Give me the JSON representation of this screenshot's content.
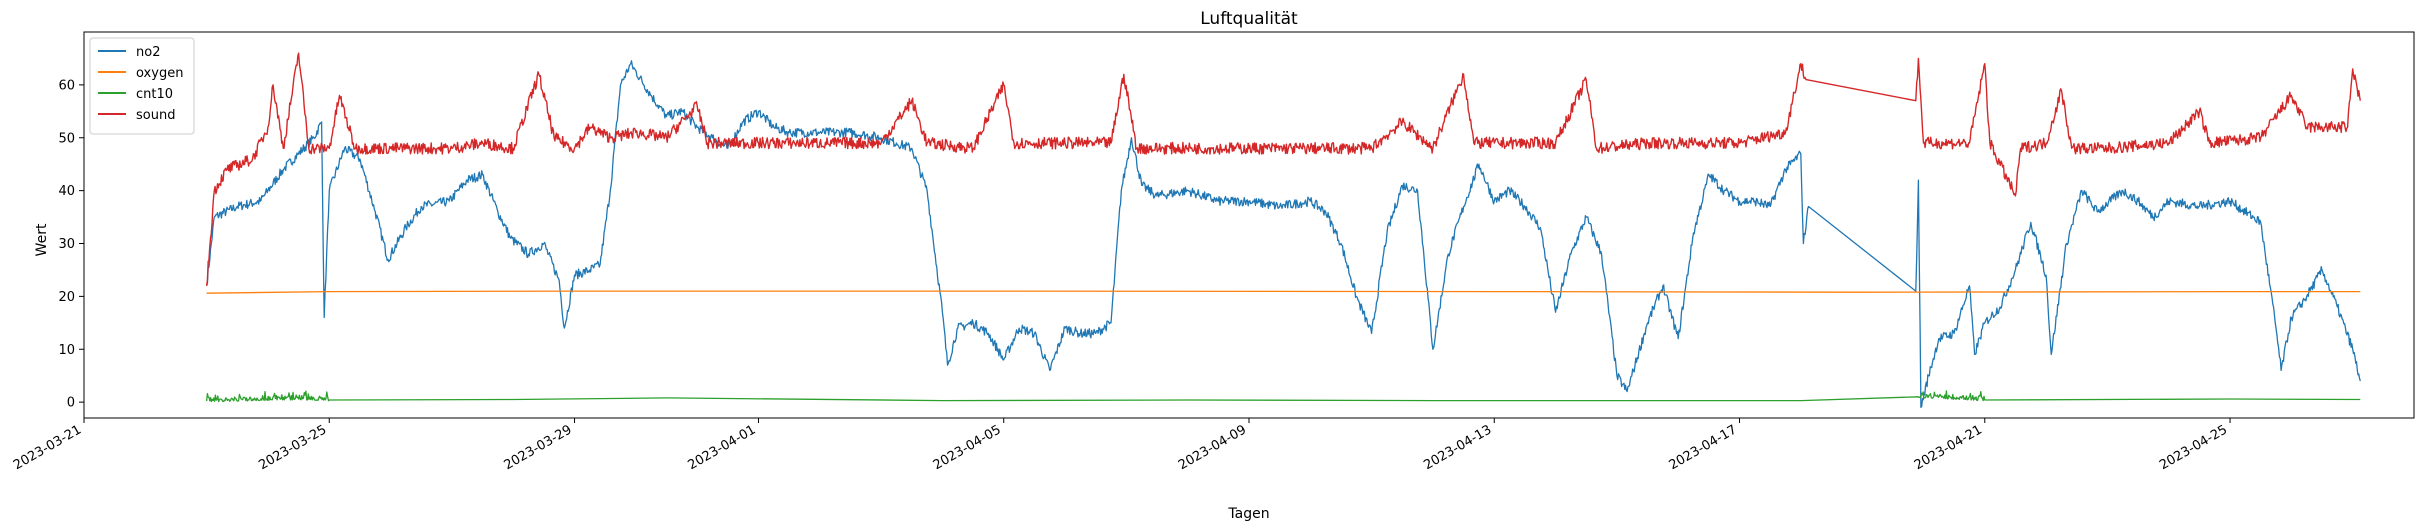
{
  "chart_data": {
    "type": "line",
    "title": "Luftqualität",
    "xlabel": "Tagen",
    "ylabel": "Wert",
    "xlim": [
      "2023-03-21T00:00",
      "2023-04-28T00:00"
    ],
    "ylim": [
      -3,
      70
    ],
    "x_ticks": [
      "2023-03-21",
      "2023-03-25",
      "2023-03-29",
      "2023-04-01",
      "2023-04-05",
      "2023-04-09",
      "2023-04-13",
      "2023-04-17",
      "2023-04-21",
      "2023-04-25"
    ],
    "y_ticks": [
      0,
      10,
      20,
      30,
      40,
      50,
      60
    ],
    "legend_position": "top-left",
    "grid": false,
    "series": [
      {
        "name": "no2",
        "color": "#1f77b4",
        "points": [
          [
            "2023-03-23T00:00",
            22
          ],
          [
            "2023-03-23T03:00",
            35
          ],
          [
            "2023-03-23T12:00",
            37
          ],
          [
            "2023-03-23T21:00",
            38
          ],
          [
            "2023-03-24T00:00",
            40
          ],
          [
            "2023-03-24T06:00",
            44
          ],
          [
            "2023-03-24T12:00",
            47
          ],
          [
            "2023-03-24T18:00",
            50
          ],
          [
            "2023-03-24T21:00",
            53
          ],
          [
            "2023-03-24T22:00",
            16
          ],
          [
            "2023-03-25T00:00",
            40
          ],
          [
            "2023-03-25T06:00",
            48
          ],
          [
            "2023-03-25T12:00",
            46
          ],
          [
            "2023-03-25T18:00",
            36
          ],
          [
            "2023-03-25T23:00",
            27
          ],
          [
            "2023-03-26T06:00",
            33
          ],
          [
            "2023-03-26T12:00",
            37
          ],
          [
            "2023-03-26T23:00",
            38
          ],
          [
            "2023-03-27T06:00",
            42
          ],
          [
            "2023-03-27T12:00",
            43
          ],
          [
            "2023-03-27T18:00",
            36
          ],
          [
            "2023-03-27T23:00",
            31
          ],
          [
            "2023-03-28T06:00",
            28
          ],
          [
            "2023-03-28T12:00",
            30
          ],
          [
            "2023-03-28T18:00",
            23
          ],
          [
            "2023-03-28T20:00",
            14
          ],
          [
            "2023-03-29T00:00",
            24
          ],
          [
            "2023-03-29T06:00",
            25
          ],
          [
            "2023-03-29T10:00",
            26
          ],
          [
            "2023-03-29T14:00",
            40
          ],
          [
            "2023-03-29T18:00",
            60
          ],
          [
            "2023-03-29T22:00",
            64
          ],
          [
            "2023-03-30T06:00",
            58
          ],
          [
            "2023-03-30T12:00",
            54
          ],
          [
            "2023-03-30T18:00",
            55
          ],
          [
            "2023-03-31T00:00",
            52
          ],
          [
            "2023-03-31T06:00",
            50
          ],
          [
            "2023-03-31T12:00",
            48
          ],
          [
            "2023-03-31T18:00",
            53
          ],
          [
            "2023-04-01T00:00",
            55
          ],
          [
            "2023-04-01T06:00",
            52
          ],
          [
            "2023-04-01T12:00",
            51
          ],
          [
            "2023-04-02T00:00",
            51
          ],
          [
            "2023-04-02T12:00",
            51
          ],
          [
            "2023-04-03T00:00",
            50
          ],
          [
            "2023-04-03T06:00",
            49
          ],
          [
            "2023-04-03T12:00",
            48
          ],
          [
            "2023-04-03T18:00",
            40
          ],
          [
            "2023-04-04T00:00",
            17
          ],
          [
            "2023-04-04T02:00",
            7
          ],
          [
            "2023-04-04T06:00",
            14
          ],
          [
            "2023-04-04T12:00",
            15
          ],
          [
            "2023-04-04T18:00",
            13
          ],
          [
            "2023-04-05T00:00",
            8
          ],
          [
            "2023-04-05T06:00",
            14
          ],
          [
            "2023-04-05T12:00",
            13
          ],
          [
            "2023-04-05T18:00",
            6
          ],
          [
            "2023-04-06T00:00",
            14
          ],
          [
            "2023-04-06T06:00",
            13
          ],
          [
            "2023-04-06T12:00",
            13
          ],
          [
            "2023-04-06T18:00",
            15
          ],
          [
            "2023-04-06T22:00",
            40
          ],
          [
            "2023-04-07T02:00",
            50
          ],
          [
            "2023-04-07T06:00",
            41
          ],
          [
            "2023-04-07T12:00",
            39
          ],
          [
            "2023-04-08T00:00",
            40
          ],
          [
            "2023-04-08T12:00",
            38
          ],
          [
            "2023-04-09T00:00",
            38
          ],
          [
            "2023-04-09T12:00",
            37
          ],
          [
            "2023-04-10T00:00",
            38
          ],
          [
            "2023-04-10T06:00",
            36
          ],
          [
            "2023-04-10T12:00",
            30
          ],
          [
            "2023-04-10T18:00",
            20
          ],
          [
            "2023-04-11T00:00",
            13
          ],
          [
            "2023-04-11T06:00",
            32
          ],
          [
            "2023-04-11T12:00",
            41
          ],
          [
            "2023-04-11T18:00",
            40
          ],
          [
            "2023-04-12T00:00",
            10
          ],
          [
            "2023-04-12T06:00",
            28
          ],
          [
            "2023-04-12T12:00",
            37
          ],
          [
            "2023-04-12T18:00",
            45
          ],
          [
            "2023-04-13T00:00",
            38
          ],
          [
            "2023-04-13T06:00",
            40
          ],
          [
            "2023-04-13T12:00",
            37
          ],
          [
            "2023-04-13T18:00",
            33
          ],
          [
            "2023-04-14T00:00",
            17
          ],
          [
            "2023-04-14T06:00",
            28
          ],
          [
            "2023-04-14T12:00",
            35
          ],
          [
            "2023-04-14T18:00",
            28
          ],
          [
            "2023-04-15T00:00",
            5
          ],
          [
            "2023-04-15T04:00",
            2
          ],
          [
            "2023-04-15T12:00",
            15
          ],
          [
            "2023-04-15T18:00",
            22
          ],
          [
            "2023-04-16T00:00",
            12
          ],
          [
            "2023-04-16T06:00",
            32
          ],
          [
            "2023-04-16T12:00",
            43
          ],
          [
            "2023-04-16T18:00",
            40
          ],
          [
            "2023-04-17T00:00",
            38
          ],
          [
            "2023-04-17T06:00",
            38
          ],
          [
            "2023-04-17T12:00",
            37
          ],
          [
            "2023-04-17T18:00",
            44
          ],
          [
            "2023-04-18T00:00",
            47
          ],
          [
            "2023-04-18T01:00",
            30
          ],
          [
            "2023-04-18T03:00",
            37
          ],
          [
            "2023-04-19T21:00",
            21
          ],
          [
            "2023-04-19T22:00",
            42
          ],
          [
            "2023-04-19T23:00",
            -1
          ],
          [
            "2023-04-20T02:00",
            5
          ],
          [
            "2023-04-20T06:00",
            12
          ],
          [
            "2023-04-20T12:00",
            13
          ],
          [
            "2023-04-20T18:00",
            22
          ],
          [
            "2023-04-20T20:00",
            9
          ],
          [
            "2023-04-21T00:00",
            15
          ],
          [
            "2023-04-21T06:00",
            18
          ],
          [
            "2023-04-21T12:00",
            25
          ],
          [
            "2023-04-21T18:00",
            34
          ],
          [
            "2023-04-22T00:00",
            24
          ],
          [
            "2023-04-22T02:00",
            9
          ],
          [
            "2023-04-22T08:00",
            30
          ],
          [
            "2023-04-22T14:00",
            40
          ],
          [
            "2023-04-22T20:00",
            36
          ],
          [
            "2023-04-23T06:00",
            40
          ],
          [
            "2023-04-23T12:00",
            38
          ],
          [
            "2023-04-23T18:00",
            35
          ],
          [
            "2023-04-24T00:00",
            38
          ],
          [
            "2023-04-24T12:00",
            37
          ],
          [
            "2023-04-25T00:00",
            38
          ],
          [
            "2023-04-25T12:00",
            34
          ],
          [
            "2023-04-25T18:00",
            14
          ],
          [
            "2023-04-25T20:00",
            6
          ],
          [
            "2023-04-26T00:00",
            16
          ],
          [
            "2023-04-26T06:00",
            20
          ],
          [
            "2023-04-26T12:00",
            25
          ],
          [
            "2023-04-26T18:00",
            18
          ],
          [
            "2023-04-27T00:00",
            10
          ],
          [
            "2023-04-27T03:00",
            4
          ]
        ]
      },
      {
        "name": "oxygen",
        "color": "#ff7f0e",
        "points": [
          [
            "2023-03-23T00:00",
            20.6
          ],
          [
            "2023-03-25T00:00",
            20.9
          ],
          [
            "2023-03-29T00:00",
            21.0
          ],
          [
            "2023-04-05T00:00",
            21.0
          ],
          [
            "2023-04-13T00:00",
            20.9
          ],
          [
            "2023-04-19T00:00",
            20.8
          ],
          [
            "2023-04-25T00:00",
            20.9
          ],
          [
            "2023-04-27T03:00",
            20.9
          ]
        ]
      },
      {
        "name": "cnt10",
        "color": "#2ca02c",
        "points": [
          [
            "2023-03-23T00:00",
            0.2
          ],
          [
            "2023-03-24T12:00",
            0.6
          ],
          [
            "2023-03-25T00:00",
            0.4
          ],
          [
            "2023-03-28T00:00",
            0.5
          ],
          [
            "2023-03-30T12:00",
            0.8
          ],
          [
            "2023-04-04T00:00",
            0.3
          ],
          [
            "2023-04-08T00:00",
            0.4
          ],
          [
            "2023-04-12T00:00",
            0.3
          ],
          [
            "2023-04-16T00:00",
            0.3
          ],
          [
            "2023-04-18T00:00",
            0.3
          ],
          [
            "2023-04-19T22:00",
            1.0
          ],
          [
            "2023-04-21T00:00",
            0.4
          ],
          [
            "2023-04-25T00:00",
            0.6
          ],
          [
            "2023-04-27T03:00",
            0.5
          ]
        ]
      },
      {
        "name": "sound",
        "color": "#d62728",
        "points": [
          [
            "2023-03-23T00:00",
            22
          ],
          [
            "2023-03-23T03:00",
            40
          ],
          [
            "2023-03-23T08:00",
            44
          ],
          [
            "2023-03-23T18:00",
            46
          ],
          [
            "2023-03-24T00:00",
            52
          ],
          [
            "2023-03-24T02:00",
            60
          ],
          [
            "2023-03-24T06:00",
            48
          ],
          [
            "2023-03-24T12:00",
            66
          ],
          [
            "2023-03-24T16:00",
            48
          ],
          [
            "2023-03-25T00:00",
            48
          ],
          [
            "2023-03-25T04:00",
            58
          ],
          [
            "2023-03-25T10:00",
            48
          ],
          [
            "2023-03-26T00:00",
            48
          ],
          [
            "2023-03-27T00:00",
            48
          ],
          [
            "2023-03-27T12:00",
            49
          ],
          [
            "2023-03-28T00:00",
            48
          ],
          [
            "2023-03-28T10:00",
            62
          ],
          [
            "2023-03-28T16:00",
            50
          ],
          [
            "2023-03-29T00:00",
            48
          ],
          [
            "2023-03-29T06:00",
            52
          ],
          [
            "2023-03-29T14:00",
            50
          ],
          [
            "2023-03-30T00:00",
            51
          ],
          [
            "2023-03-30T12:00",
            50
          ],
          [
            "2023-03-31T00:00",
            56
          ],
          [
            "2023-03-31T04:00",
            49
          ],
          [
            "2023-04-01T00:00",
            49
          ],
          [
            "2023-04-02T00:00",
            49
          ],
          [
            "2023-04-03T00:00",
            49
          ],
          [
            "2023-04-03T12:00",
            57
          ],
          [
            "2023-04-03T18:00",
            49
          ],
          [
            "2023-04-04T12:00",
            48
          ],
          [
            "2023-04-05T00:00",
            60
          ],
          [
            "2023-04-05T04:00",
            49
          ],
          [
            "2023-04-06T00:00",
            49
          ],
          [
            "2023-04-06T18:00",
            49
          ],
          [
            "2023-04-06T23:00",
            62
          ],
          [
            "2023-04-07T04:00",
            48
          ],
          [
            "2023-04-08T00:00",
            48
          ],
          [
            "2023-04-09T00:00",
            48
          ],
          [
            "2023-04-10T00:00",
            48
          ],
          [
            "2023-04-11T00:00",
            48
          ],
          [
            "2023-04-11T12:00",
            53
          ],
          [
            "2023-04-12T00:00",
            48
          ],
          [
            "2023-04-12T12:00",
            62
          ],
          [
            "2023-04-12T16:00",
            49
          ],
          [
            "2023-04-13T00:00",
            49
          ],
          [
            "2023-04-14T00:00",
            49
          ],
          [
            "2023-04-14T12:00",
            61
          ],
          [
            "2023-04-14T16:00",
            48
          ],
          [
            "2023-04-15T12:00",
            49
          ],
          [
            "2023-04-16T00:00",
            49
          ],
          [
            "2023-04-17T00:00",
            49
          ],
          [
            "2023-04-17T18:00",
            51
          ],
          [
            "2023-04-18T00:00",
            64
          ],
          [
            "2023-04-18T02:00",
            61
          ],
          [
            "2023-04-19T21:00",
            57
          ],
          [
            "2023-04-19T22:00",
            65
          ],
          [
            "2023-04-20T00:00",
            49
          ],
          [
            "2023-04-20T18:00",
            49
          ],
          [
            "2023-04-21T00:00",
            64
          ],
          [
            "2023-04-21T02:00",
            49
          ],
          [
            "2023-04-21T12:00",
            39
          ],
          [
            "2023-04-21T14:00",
            48
          ],
          [
            "2023-04-22T00:00",
            49
          ],
          [
            "2023-04-22T06:00",
            59
          ],
          [
            "2023-04-22T10:00",
            48
          ],
          [
            "2023-04-23T00:00",
            48
          ],
          [
            "2023-04-24T00:00",
            49
          ],
          [
            "2023-04-24T12:00",
            55
          ],
          [
            "2023-04-24T16:00",
            49
          ],
          [
            "2023-04-25T12:00",
            50
          ],
          [
            "2023-04-26T00:00",
            58
          ],
          [
            "2023-04-26T06:00",
            52
          ],
          [
            "2023-04-26T12:00",
            52
          ],
          [
            "2023-04-26T22:00",
            52
          ],
          [
            "2023-04-27T00:00",
            63
          ],
          [
            "2023-04-27T03:00",
            57
          ]
        ]
      }
    ]
  }
}
